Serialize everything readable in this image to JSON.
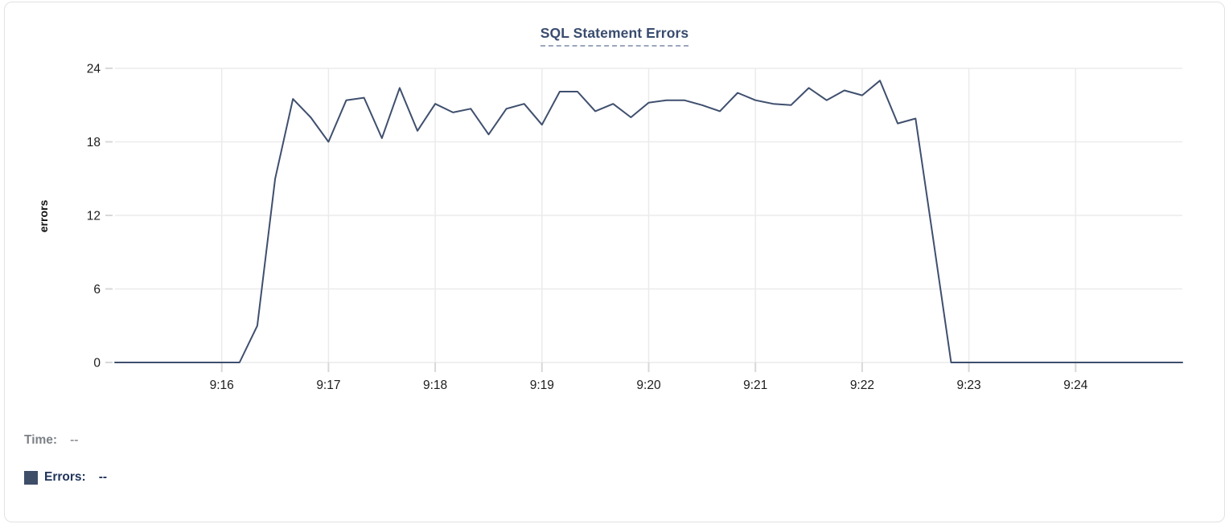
{
  "panel": {
    "title": "SQL Statement Errors"
  },
  "chart_data": {
    "type": "line",
    "title": "SQL Statement Errors",
    "xlabel": "",
    "ylabel": "errors",
    "ylim": [
      0,
      24
    ],
    "yticks": [
      0,
      6,
      12,
      18,
      24
    ],
    "xtick_labels": [
      "9:16",
      "9:17",
      "9:18",
      "9:19",
      "9:20",
      "9:21",
      "9:22",
      "9:23",
      "9:24"
    ],
    "x_range": [
      "9:15:00",
      "9:25:00"
    ],
    "x_interval_seconds": 10,
    "grid": true,
    "legend_position": "bottom",
    "series": [
      {
        "name": "Errors",
        "color": "#3f4f6e",
        "x": [
          "9:15:00",
          "9:15:10",
          "9:15:20",
          "9:15:30",
          "9:15:40",
          "9:15:50",
          "9:16:00",
          "9:16:10",
          "9:16:20",
          "9:16:30",
          "9:16:40",
          "9:16:50",
          "9:17:00",
          "9:17:10",
          "9:17:20",
          "9:17:30",
          "9:17:40",
          "9:17:50",
          "9:18:00",
          "9:18:10",
          "9:18:20",
          "9:18:30",
          "9:18:40",
          "9:18:50",
          "9:19:00",
          "9:19:10",
          "9:19:20",
          "9:19:30",
          "9:19:40",
          "9:19:50",
          "9:20:00",
          "9:20:10",
          "9:20:20",
          "9:20:30",
          "9:20:40",
          "9:20:50",
          "9:21:00",
          "9:21:10",
          "9:21:20",
          "9:21:30",
          "9:21:40",
          "9:21:50",
          "9:22:00",
          "9:22:10",
          "9:22:20",
          "9:22:30",
          "9:22:40",
          "9:22:50",
          "9:23:00",
          "9:23:10",
          "9:23:20",
          "9:23:30",
          "9:23:40",
          "9:23:50",
          "9:24:00",
          "9:24:10",
          "9:24:20",
          "9:24:30",
          "9:24:40",
          "9:24:50",
          "9:25:00"
        ],
        "values": [
          0,
          0,
          0,
          0,
          0,
          0,
          0,
          0,
          3,
          15,
          21.5,
          20,
          18,
          21.4,
          21.6,
          18.3,
          22.4,
          18.9,
          21.1,
          20.4,
          20.7,
          18.6,
          20.7,
          21.1,
          19.4,
          22.1,
          22.1,
          20.5,
          21.1,
          20,
          21.2,
          21.4,
          21.4,
          21,
          20.5,
          22,
          21.4,
          21.1,
          21,
          22.4,
          21.4,
          22.2,
          21.8,
          23,
          19.5,
          19.9,
          10,
          0,
          0,
          0,
          0,
          0,
          0,
          0,
          0,
          0,
          0,
          0,
          0,
          0,
          0
        ]
      }
    ]
  },
  "readout": {
    "time_label": "Time:",
    "time_value": "--",
    "errors_label": "Errors:",
    "errors_value": "--",
    "swatch_color": "#3e4d68"
  },
  "colors": {
    "line": "#3f4f6e",
    "title": "#394c6f",
    "title_underline": "#9ca7c0",
    "gridline": "#ebebeb",
    "tick_mark": "#d8d8d8",
    "axis_text": "#1b1b1d",
    "muted_text": "#7d8187",
    "legend_text": "#21345a",
    "panel_border": "#e2e2e2",
    "background": "#ffffff"
  }
}
